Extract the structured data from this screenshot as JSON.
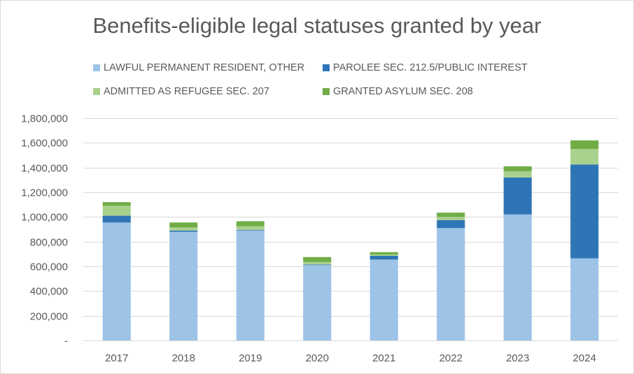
{
  "chart_data": {
    "type": "bar",
    "stacked": true,
    "title": "Benefits-eligible legal statuses granted by year",
    "xlabel": "",
    "ylabel": "",
    "categories": [
      "2017",
      "2018",
      "2019",
      "2020",
      "2021",
      "2022",
      "2023",
      "2024"
    ],
    "series": [
      {
        "name": "LAWFUL PERMANENT RESIDENT, OTHER",
        "color": "#9dc3e6",
        "values": [
          955000,
          880000,
          890000,
          610000,
          655000,
          910000,
          1020000,
          665000
        ]
      },
      {
        "name": "PAROLEE SEC. 212.5/PUBLIC INTEREST",
        "color": "#2e75b6",
        "values": [
          55000,
          10000,
          5000,
          5000,
          30000,
          65000,
          300000,
          760000
        ]
      },
      {
        "name": "ADMITTED AS REFUGEE SEC. 207",
        "color": "#a9d18e",
        "values": [
          80000,
          25000,
          30000,
          20000,
          10000,
          25000,
          50000,
          125000
        ]
      },
      {
        "name": "GRANTED ASYLUM SEC. 208",
        "color": "#70ad47",
        "values": [
          30000,
          40000,
          40000,
          40000,
          20000,
          35000,
          40000,
          70000
        ]
      }
    ],
    "ylim": [
      0,
      1800000
    ],
    "ytick_values": [
      0,
      200000,
      400000,
      600000,
      800000,
      1000000,
      1200000,
      1400000,
      1600000,
      1800000
    ],
    "ytick_labels": [
      "-",
      "200,000",
      "400,000",
      "600,000",
      "800,000",
      "1,000,000",
      "1,200,000",
      "1,400,000",
      "1,600,000",
      "1,800,000"
    ],
    "grid": true,
    "legend_position": "top"
  }
}
